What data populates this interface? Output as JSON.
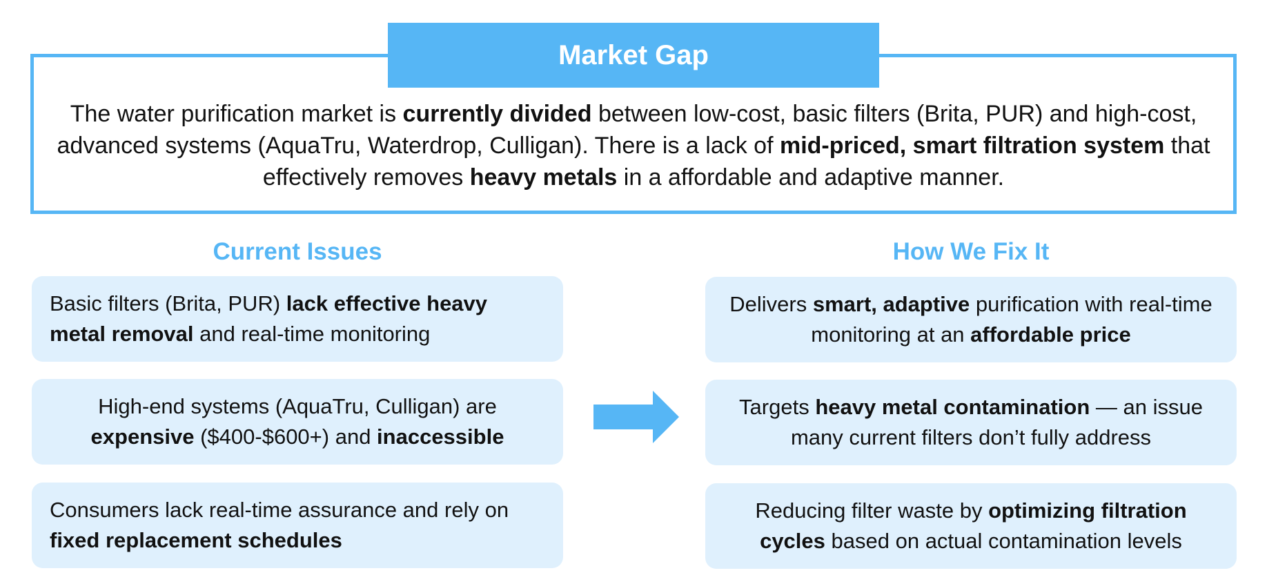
{
  "market_gap": {
    "title": "Market Gap",
    "description": [
      {
        "text": "The water purification market is ",
        "bold": false
      },
      {
        "text": "currently divided",
        "bold": true
      },
      {
        "text": " between low-cost, basic filters (Brita, PUR) and high-cost, advanced systems (AquaTru, Waterdrop, Culligan). There is a lack of ",
        "bold": false
      },
      {
        "text": "mid-priced, smart filtration system",
        "bold": true
      },
      {
        "text": " that effectively removes ",
        "bold": false
      },
      {
        "text": "heavy metals",
        "bold": true
      },
      {
        "text": " in a affordable and adaptive manner.",
        "bold": false
      }
    ]
  },
  "current_issues": {
    "heading": "Current Issues",
    "items": [
      [
        {
          "text": "Basic filters (Brita, PUR) ",
          "bold": false
        },
        {
          "text": "lack effective heavy metal removal",
          "bold": true
        },
        {
          "text": " and real-time monitoring",
          "bold": false
        }
      ],
      [
        {
          "text": "High-end systems (AquaTru, Culligan) are ",
          "bold": false
        },
        {
          "text": "expensive",
          "bold": true
        },
        {
          "text": " ($400-$600+) and ",
          "bold": false
        },
        {
          "text": "inaccessible",
          "bold": true
        }
      ],
      [
        {
          "text": "Consumers lack real-time assurance and rely on ",
          "bold": false
        },
        {
          "text": "fixed replacement schedules",
          "bold": true
        }
      ]
    ]
  },
  "how_we_fix_it": {
    "heading": "How We Fix It",
    "items": [
      [
        {
          "text": "Delivers ",
          "bold": false
        },
        {
          "text": "smart, adaptive",
          "bold": true
        },
        {
          "text": " purification with real-time monitoring at an ",
          "bold": false
        },
        {
          "text": "affordable price",
          "bold": true
        }
      ],
      [
        {
          "text": "Targets ",
          "bold": false
        },
        {
          "text": "heavy metal contamination",
          "bold": true
        },
        {
          "text": " — an issue many current filters don’t fully address",
          "bold": false
        }
      ],
      [
        {
          "text": "Reducing filter waste by ",
          "bold": false
        },
        {
          "text": "optimizing filtration cycles",
          "bold": true
        },
        {
          "text": " based on actual contamination levels",
          "bold": false
        }
      ]
    ]
  },
  "arrow": {
    "icon": "right-arrow-icon",
    "color": "#56b6f5"
  },
  "colors": {
    "accent": "#56b6f5",
    "card_background": "#dff0fd",
    "text": "#111111"
  }
}
